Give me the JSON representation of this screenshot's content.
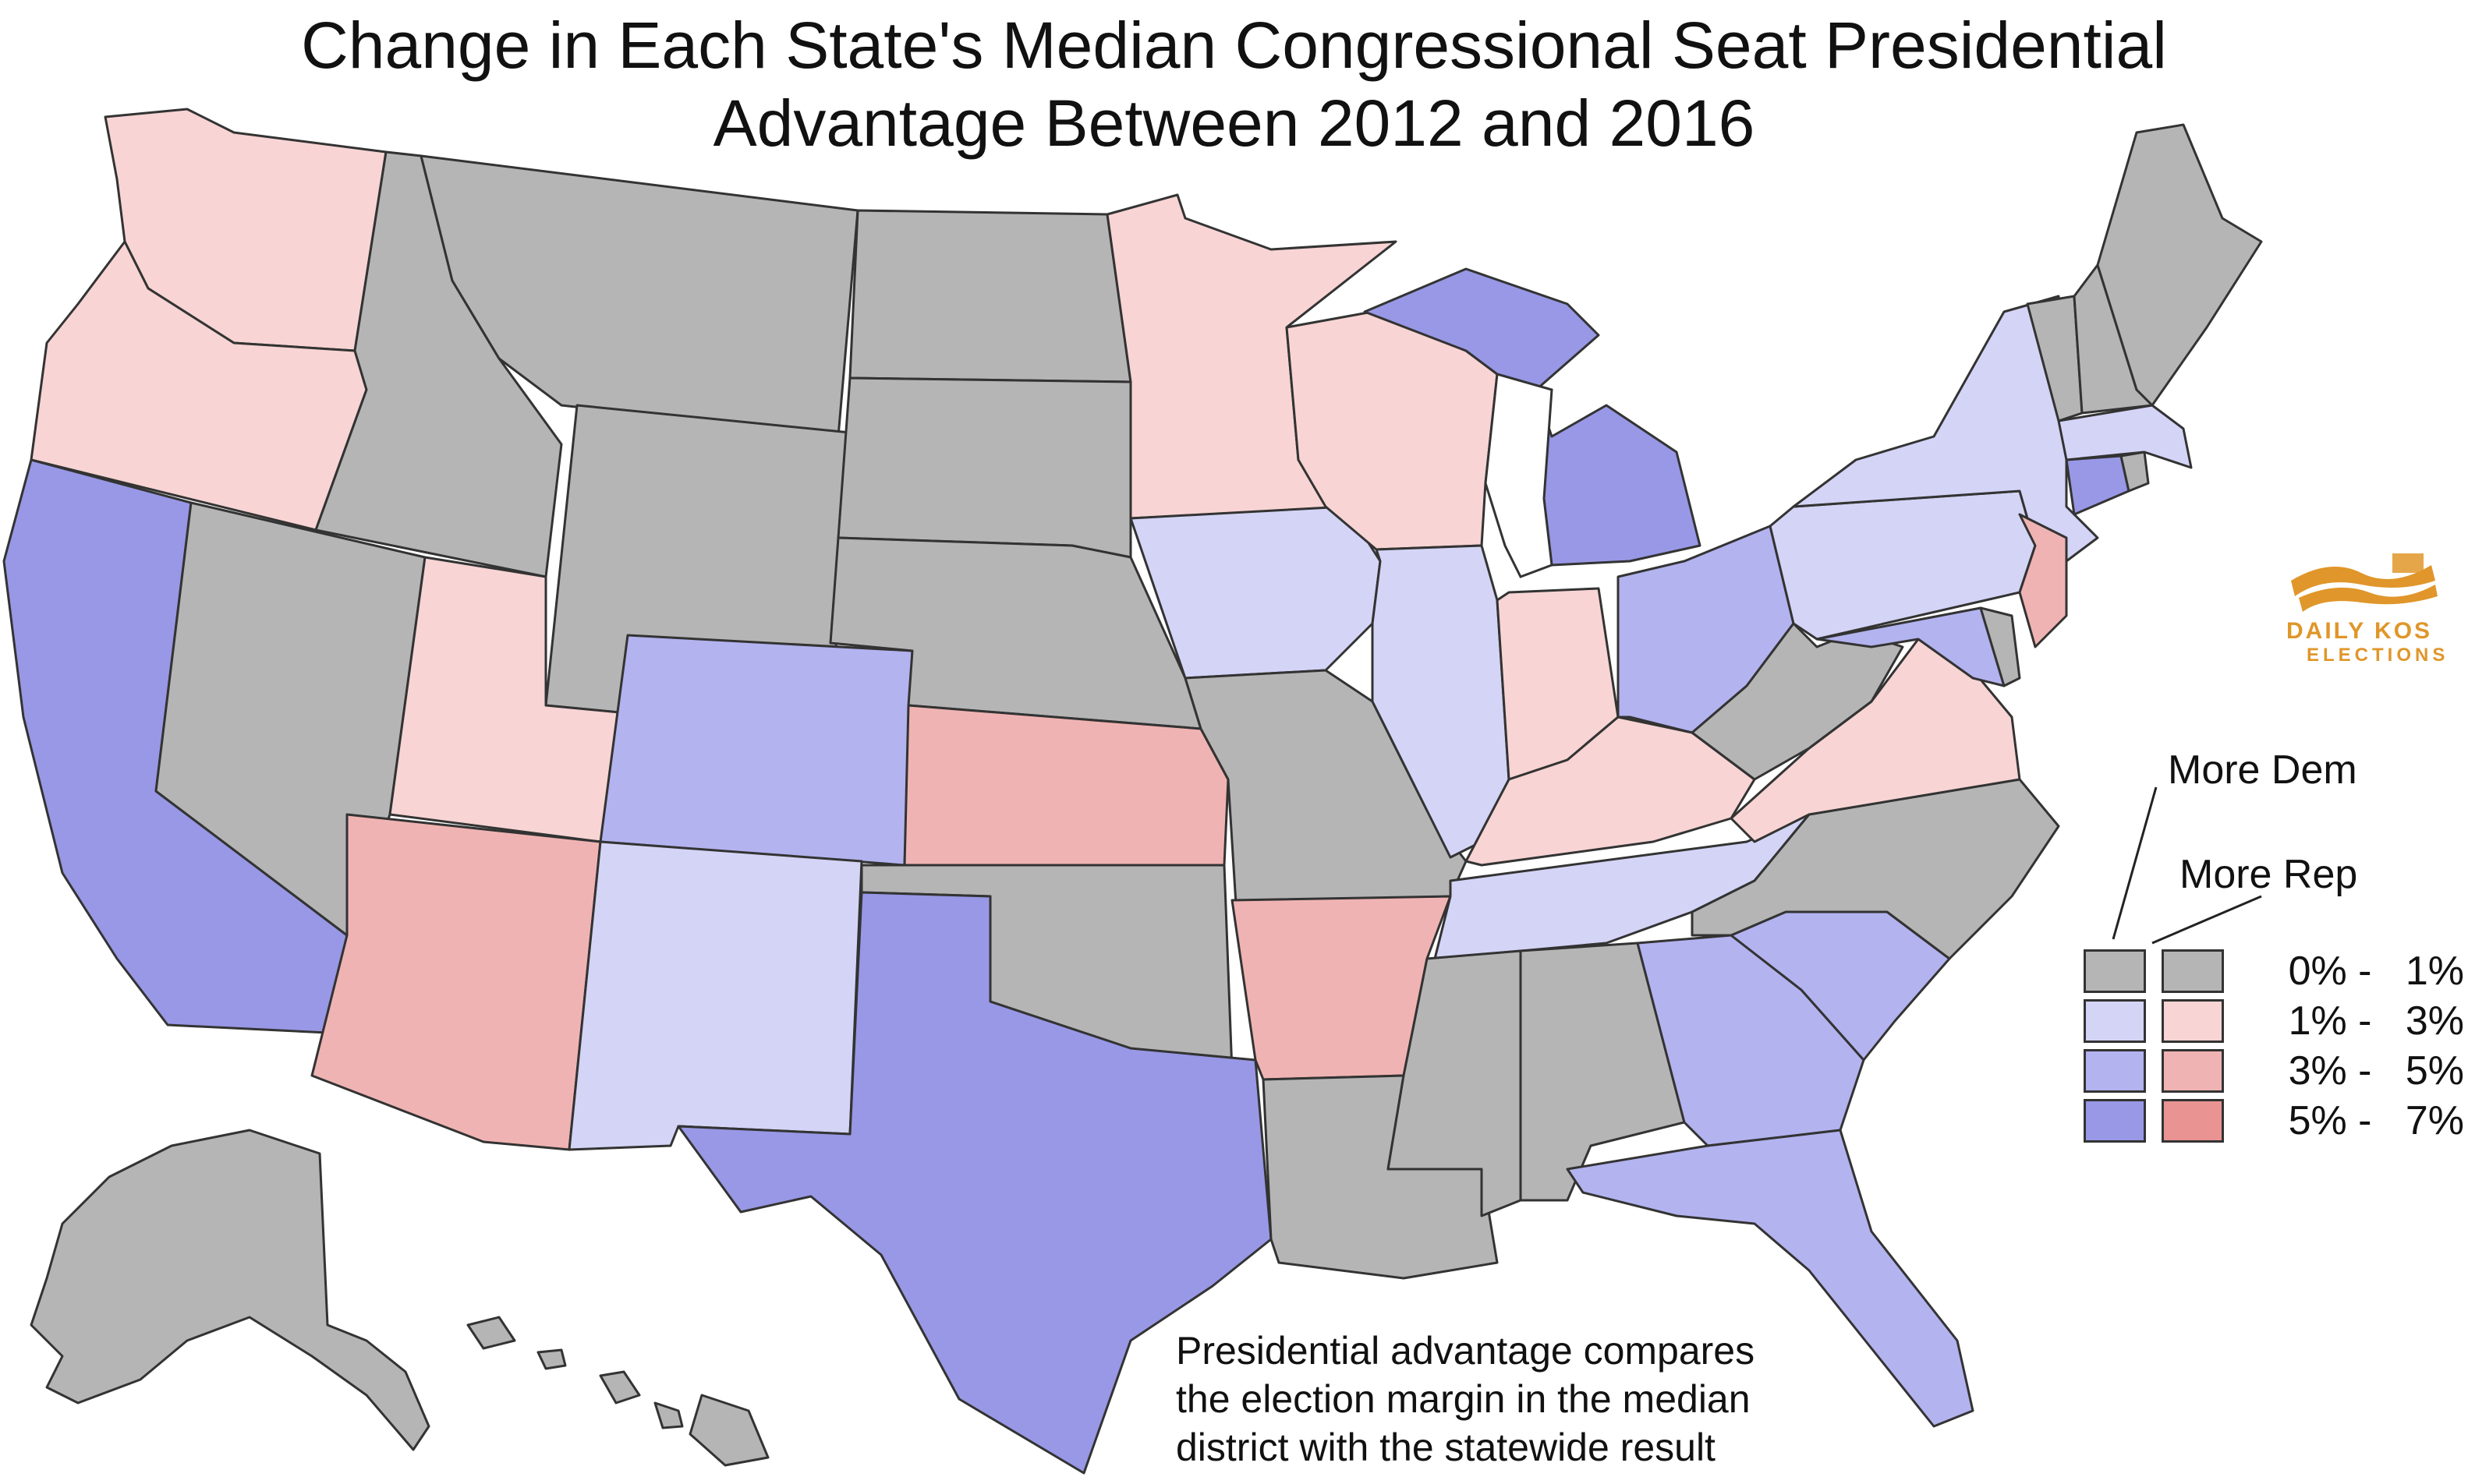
{
  "title": {
    "line1": "Change in Each State's Median Congressional Seat Presidential",
    "line2": "Advantage Between 2012 and 2016"
  },
  "colors": {
    "gray": "#b5b5b5",
    "dem_1_3": "#d4d4f7",
    "dem_3_5": "#b3b3f0",
    "dem_5_7": "#9898e6",
    "rep_1_3": "#f8d4d4",
    "rep_3_5": "#f0b3b3",
    "rep_5_7": "#e99393",
    "water": "#ffffff"
  },
  "legend": {
    "dem_header": "More Dem",
    "rep_header": "More Rep",
    "rows": [
      {
        "range": "0% -   1%",
        "dem": "gray",
        "rep": "gray"
      },
      {
        "range": "1% -   3%",
        "dem": "dem_1_3",
        "rep": "rep_1_3"
      },
      {
        "range": "3% -   5%",
        "dem": "dem_3_5",
        "rep": "rep_3_5"
      },
      {
        "range": "5% -   7%",
        "dem": "dem_5_7",
        "rep": "rep_5_7"
      }
    ]
  },
  "states": {
    "WA": "rep_1_3",
    "OR": "rep_1_3",
    "CA": "dem_5_7",
    "NV": "gray",
    "ID": "gray",
    "MT": "gray",
    "WY": "gray",
    "UT": "rep_1_3",
    "AZ": "rep_3_5",
    "CO": "dem_3_5",
    "NM": "dem_1_3",
    "ND": "gray",
    "SD": "gray",
    "NE": "gray",
    "KS": "rep_3_5",
    "OK": "gray",
    "TX": "dem_5_7",
    "MN": "rep_1_3",
    "IA": "dem_1_3",
    "MO": "gray",
    "AR": "rep_3_5",
    "LA": "gray",
    "WI": "rep_1_3",
    "IL": "dem_1_3",
    "MI": "dem_5_7",
    "IN": "rep_1_3",
    "OH": "dem_3_5",
    "KY": "rep_1_3",
    "TN": "dem_1_3",
    "MS": "gray",
    "AL": "gray",
    "GA": "dem_3_5",
    "FL": "dem_3_5",
    "SC": "dem_3_5",
    "NC": "gray",
    "VA": "rep_1_3",
    "WV": "gray",
    "PA": "dem_1_3",
    "NY": "dem_1_3",
    "NJ": "rep_3_5",
    "MD": "dem_3_5",
    "DE": "gray",
    "CT": "dem_5_7",
    "RI": "gray",
    "MA": "dem_1_3",
    "VT": "gray",
    "NH": "gray",
    "ME": "gray",
    "AK": "gray",
    "HI": "gray"
  },
  "logo": {
    "name": "DAILY KOS",
    "sub": "ELECTIONS",
    "color": "#e0962a"
  },
  "note": {
    "line1": "Presidential advantage compares",
    "line2": "the election margin in the median",
    "line3": "district with the statewide result"
  }
}
